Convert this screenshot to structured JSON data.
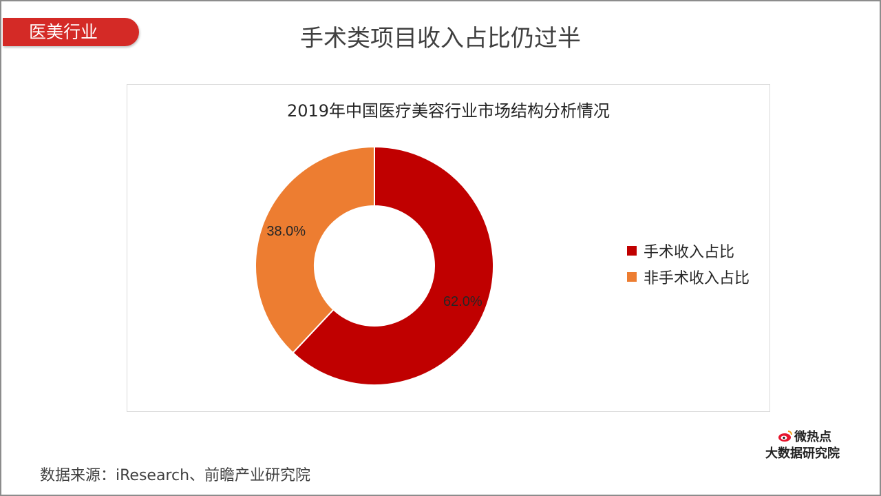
{
  "header": {
    "tag": "医美行业",
    "title": "手术类项目收入占比仍过半"
  },
  "colors": {
    "accent": "#d42a26",
    "surgical": "#c00000",
    "non_surgical": "#ed7d31"
  },
  "chart_data": {
    "type": "pie",
    "title": "2019年中国医疗美容行业市场结构分析情况",
    "donut": true,
    "slices": [
      {
        "name": "手术收入占比",
        "value": 62.0,
        "label": "62.0%",
        "color": "#c00000"
      },
      {
        "name": "非手术收入占比",
        "value": 38.0,
        "label": "38.0%",
        "color": "#ed7d31"
      }
    ],
    "legend_position": "right"
  },
  "footer": {
    "source": "数据来源：iResearch、前瞻产业研究院",
    "brand_top": "微热点",
    "brand_bottom": "大数据研究院"
  }
}
